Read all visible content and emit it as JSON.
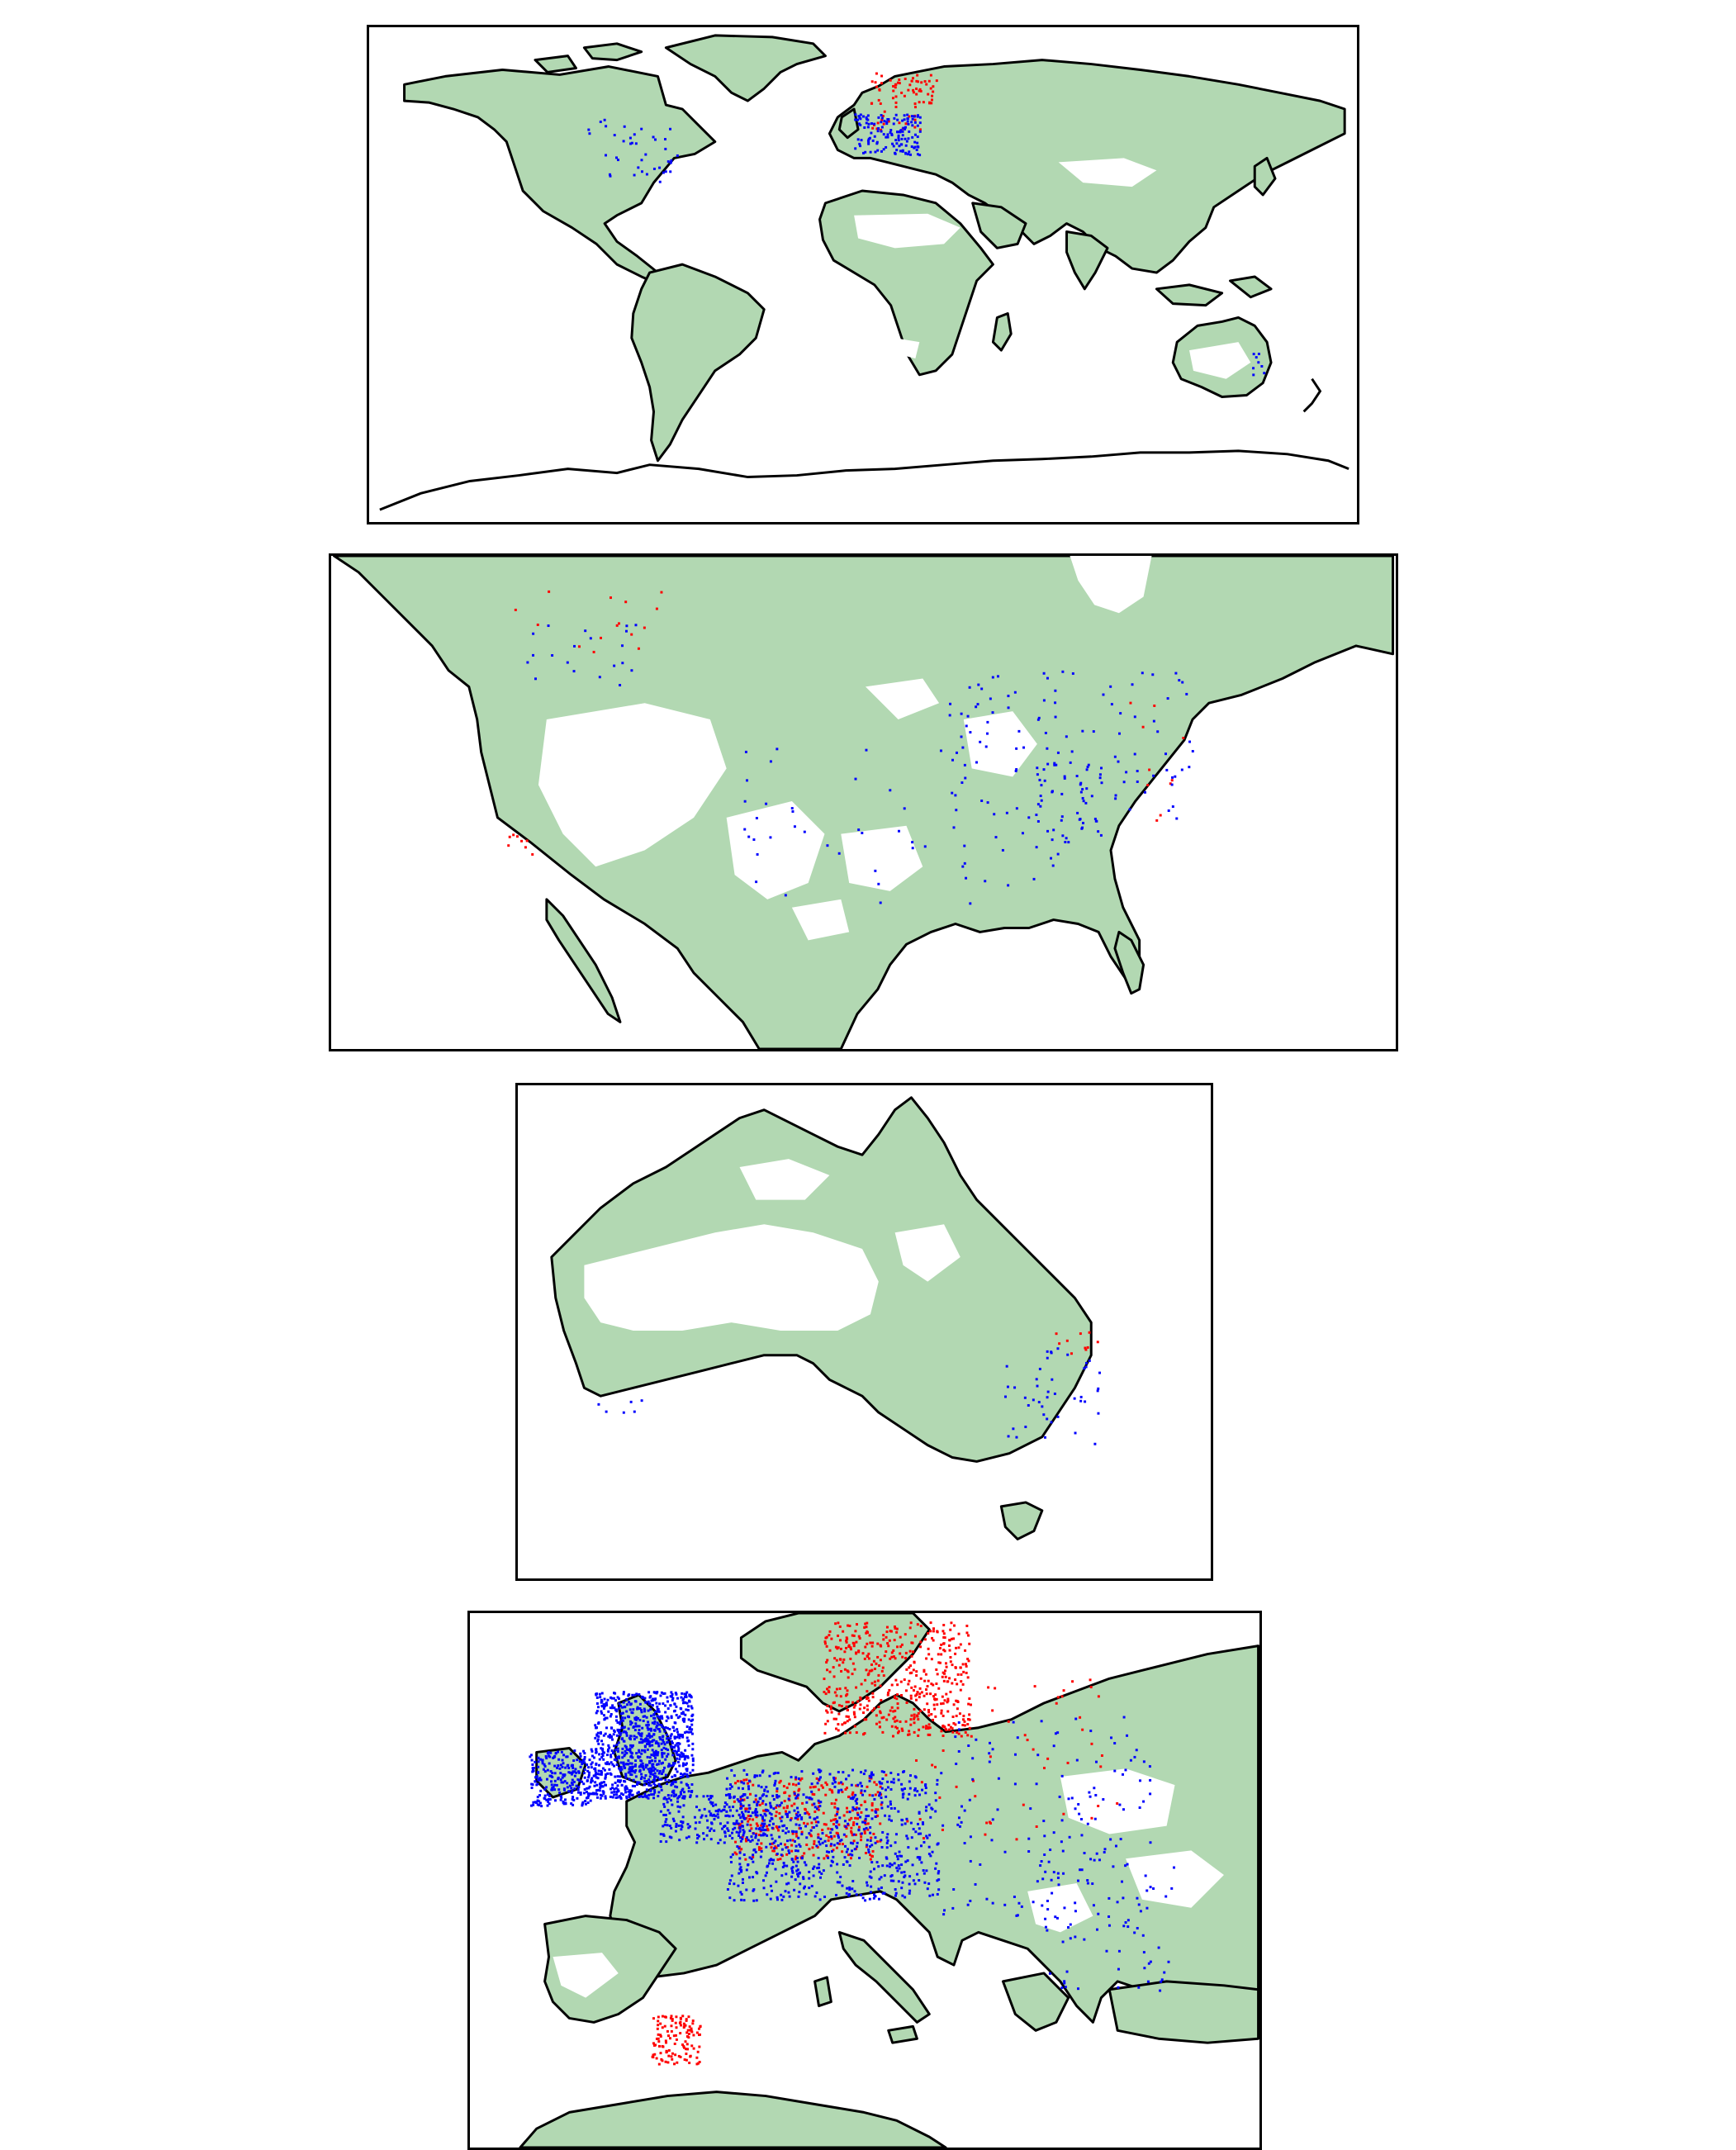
{
  "colors": {
    "vegetation": "#b2d8b2",
    "coastline": "#000000",
    "background": "#ffffff",
    "points_red": "#ff0000",
    "points_blue": "#0000ff"
  },
  "maps": [
    {
      "id": "world",
      "region": "world"
    },
    {
      "id": "namerica",
      "region": "north-america"
    },
    {
      "id": "australia",
      "region": "australia"
    },
    {
      "id": "europe",
      "region": "europe"
    }
  ]
}
